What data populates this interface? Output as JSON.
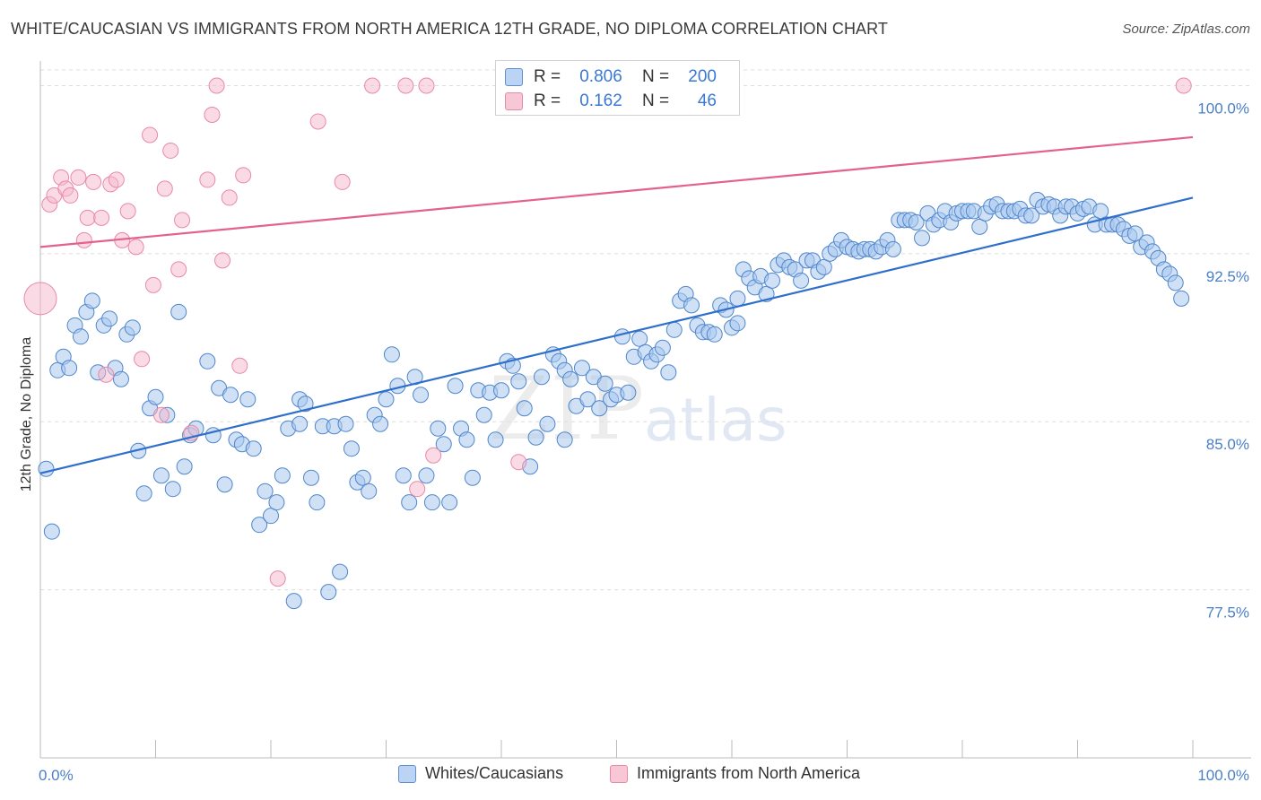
{
  "title": "WHITE/CAUCASIAN VS IMMIGRANTS FROM NORTH AMERICA 12TH GRADE, NO DIPLOMA CORRELATION CHART",
  "source": "Source: ZipAtlas.com",
  "watermark": {
    "zip": "ZIP",
    "atlas": "atlas"
  },
  "colors": {
    "blue_fill": "#a9c8ef",
    "blue_stroke": "#4f86cc",
    "blue_line": "#2f6fcc",
    "pink_fill": "#f6b8cb",
    "pink_stroke": "#e889a6",
    "pink_line": "#e3628c",
    "tick_text": "#4a7fc8",
    "grid": "#dddddd"
  },
  "legend_top": {
    "rows": [
      {
        "r_label": "R =",
        "r_value": "0.806",
        "n_label": "N =",
        "n_value": "200"
      },
      {
        "r_label": "R =",
        "r_value": "0.162",
        "n_label": "N =",
        "n_value": "46"
      }
    ]
  },
  "legend_bottom": [
    {
      "label": "Whites/Caucasians"
    },
    {
      "label": "Immigrants from North America"
    }
  ],
  "chart_data": {
    "type": "scatter",
    "title": "WHITE/CAUCASIAN VS IMMIGRANTS FROM NORTH AMERICA 12TH GRADE, NO DIPLOMA CORRELATION CHART",
    "xlabel": "",
    "ylabel": "12th Grade, No Diploma",
    "xlim": [
      0,
      100
    ],
    "ylim": [
      70.0,
      100.7
    ],
    "x_tick_labels": [
      "0.0%",
      "100.0%"
    ],
    "y_ticks": [
      77.5,
      85.0,
      92.5,
      100.0
    ],
    "y_tick_labels": [
      "77.5%",
      "85.0%",
      "92.5%",
      "100.0%"
    ],
    "grid": true,
    "legend_position": "top-center",
    "series": [
      {
        "name": "Whites/Caucasians",
        "color": "#a9c8ef",
        "trend": {
          "x": [
            0,
            100
          ],
          "y": [
            82.7,
            95.0
          ]
        },
        "points": [
          [
            0.5,
            82.9
          ],
          [
            1,
            80.1
          ],
          [
            1.5,
            87.3
          ],
          [
            2,
            87.9
          ],
          [
            2.5,
            87.4
          ],
          [
            3,
            89.3
          ],
          [
            3.5,
            88.8
          ],
          [
            4,
            89.9
          ],
          [
            4.5,
            90.4
          ],
          [
            5,
            87.2
          ],
          [
            5.5,
            89.3
          ],
          [
            6,
            89.6
          ],
          [
            6.5,
            87.4
          ],
          [
            7,
            86.9
          ],
          [
            7.5,
            88.9
          ],
          [
            8,
            89.2
          ],
          [
            8.5,
            83.7
          ],
          [
            9,
            81.8
          ],
          [
            9.5,
            85.6
          ],
          [
            10,
            86.1
          ],
          [
            10.5,
            82.6
          ],
          [
            11,
            85.3
          ],
          [
            11.5,
            82.0
          ],
          [
            12,
            89.9
          ],
          [
            12.5,
            83.0
          ],
          [
            13,
            84.4
          ],
          [
            13.5,
            84.7
          ],
          [
            14.5,
            87.7
          ],
          [
            15,
            84.4
          ],
          [
            15.5,
            86.5
          ],
          [
            16,
            82.2
          ],
          [
            16.5,
            86.2
          ],
          [
            17,
            84.2
          ],
          [
            17.5,
            84.0
          ],
          [
            18,
            86.0
          ],
          [
            18.5,
            83.8
          ],
          [
            19,
            80.4
          ],
          [
            19.5,
            81.9
          ],
          [
            20,
            80.8
          ],
          [
            20.5,
            81.4
          ],
          [
            21,
            82.6
          ],
          [
            21.5,
            84.7
          ],
          [
            22,
            77.0
          ],
          [
            22.5,
            86.0
          ],
          [
            23,
            85.8
          ],
          [
            23.5,
            82.5
          ],
          [
            24,
            81.4
          ],
          [
            24.5,
            84.8
          ],
          [
            25,
            77.4
          ],
          [
            25.5,
            84.8
          ],
          [
            26,
            78.3
          ],
          [
            26.5,
            84.9
          ],
          [
            27,
            83.8
          ],
          [
            27.5,
            82.3
          ],
          [
            28,
            82.5
          ],
          [
            28.5,
            81.9
          ],
          [
            29,
            85.3
          ],
          [
            29.5,
            84.9
          ],
          [
            30,
            86.0
          ],
          [
            30.5,
            88.0
          ],
          [
            31,
            86.6
          ],
          [
            31.5,
            82.6
          ],
          [
            32,
            81.4
          ],
          [
            32.5,
            87.0
          ],
          [
            33,
            86.2
          ],
          [
            33.5,
            82.6
          ],
          [
            34,
            81.4
          ],
          [
            34.5,
            84.7
          ],
          [
            35,
            84.0
          ],
          [
            35.5,
            81.4
          ],
          [
            36,
            86.6
          ],
          [
            36.5,
            84.7
          ],
          [
            37,
            84.2
          ],
          [
            37.5,
            82.5
          ],
          [
            38,
            86.4
          ],
          [
            38.5,
            85.3
          ],
          [
            39,
            86.3
          ],
          [
            39.5,
            84.2
          ],
          [
            40,
            86.4
          ],
          [
            40.5,
            87.7
          ],
          [
            41,
            87.5
          ],
          [
            41.5,
            86.8
          ],
          [
            42,
            85.6
          ],
          [
            42.5,
            83.0
          ],
          [
            43,
            84.3
          ],
          [
            43.5,
            87.0
          ],
          [
            44,
            84.9
          ],
          [
            44.5,
            88.0
          ],
          [
            45,
            87.7
          ],
          [
            45.5,
            87.3
          ],
          [
            46,
            86.9
          ],
          [
            46.5,
            85.7
          ],
          [
            47,
            87.4
          ],
          [
            47.5,
            86.0
          ],
          [
            48,
            87.0
          ],
          [
            48.5,
            85.6
          ],
          [
            49,
            86.7
          ],
          [
            49.5,
            86.0
          ],
          [
            50,
            86.2
          ],
          [
            50.5,
            88.8
          ],
          [
            51,
            86.3
          ],
          [
            51.5,
            87.9
          ],
          [
            52,
            88.7
          ],
          [
            52.5,
            88.1
          ],
          [
            53,
            87.7
          ],
          [
            53.5,
            88.0
          ],
          [
            54,
            88.3
          ],
          [
            54.5,
            87.2
          ],
          [
            55,
            89.1
          ],
          [
            55.5,
            90.4
          ],
          [
            56,
            90.7
          ],
          [
            56.5,
            90.2
          ],
          [
            57,
            89.3
          ],
          [
            57.5,
            89.0
          ],
          [
            58,
            89.0
          ],
          [
            58.5,
            88.9
          ],
          [
            59,
            90.2
          ],
          [
            59.5,
            90.0
          ],
          [
            60,
            89.2
          ],
          [
            60.5,
            90.5
          ],
          [
            61,
            91.8
          ],
          [
            61.5,
            91.4
          ],
          [
            62,
            91.0
          ],
          [
            62.5,
            91.5
          ],
          [
            63,
            90.7
          ],
          [
            63.5,
            91.3
          ],
          [
            64,
            92.0
          ],
          [
            64.5,
            92.2
          ],
          [
            65,
            91.9
          ],
          [
            65.5,
            91.8
          ],
          [
            66,
            91.3
          ],
          [
            66.5,
            92.2
          ],
          [
            67,
            92.2
          ],
          [
            67.5,
            91.7
          ],
          [
            68,
            91.9
          ],
          [
            68.5,
            92.5
          ],
          [
            69,
            92.7
          ],
          [
            69.5,
            93.1
          ],
          [
            70,
            92.8
          ],
          [
            70.5,
            92.7
          ],
          [
            71,
            92.6
          ],
          [
            71.5,
            92.7
          ],
          [
            72,
            92.7
          ],
          [
            72.5,
            92.6
          ],
          [
            73,
            92.8
          ],
          [
            73.5,
            93.1
          ],
          [
            74,
            92.7
          ],
          [
            74.5,
            94.0
          ],
          [
            75,
            94.0
          ],
          [
            75.5,
            94.0
          ],
          [
            76,
            93.9
          ],
          [
            76.5,
            93.2
          ],
          [
            77,
            94.3
          ],
          [
            77.5,
            93.8
          ],
          [
            78,
            94.0
          ],
          [
            78.5,
            94.4
          ],
          [
            79,
            93.9
          ],
          [
            79.5,
            94.3
          ],
          [
            80,
            94.4
          ],
          [
            80.5,
            94.4
          ],
          [
            81,
            94.4
          ],
          [
            81.5,
            93.7
          ],
          [
            82,
            94.3
          ],
          [
            82.5,
            94.6
          ],
          [
            83,
            94.7
          ],
          [
            83.5,
            94.4
          ],
          [
            84,
            94.4
          ],
          [
            84.5,
            94.4
          ],
          [
            85,
            94.5
          ],
          [
            85.5,
            94.2
          ],
          [
            86,
            94.2
          ],
          [
            86.5,
            94.9
          ],
          [
            87,
            94.6
          ],
          [
            87.5,
            94.7
          ],
          [
            88,
            94.6
          ],
          [
            88.5,
            94.2
          ],
          [
            89,
            94.6
          ],
          [
            89.5,
            94.6
          ],
          [
            90,
            94.3
          ],
          [
            90.5,
            94.5
          ],
          [
            91,
            94.6
          ],
          [
            91.5,
            93.8
          ],
          [
            92,
            94.4
          ],
          [
            92.5,
            93.8
          ],
          [
            93,
            93.8
          ],
          [
            93.5,
            93.8
          ],
          [
            94,
            93.6
          ],
          [
            94.5,
            93.3
          ],
          [
            95,
            93.4
          ],
          [
            95.5,
            92.8
          ],
          [
            96,
            93.0
          ],
          [
            96.5,
            92.6
          ],
          [
            97,
            92.3
          ],
          [
            97.5,
            91.8
          ],
          [
            98,
            91.6
          ],
          [
            98.5,
            91.2
          ],
          [
            99,
            90.5
          ],
          [
            22.5,
            84.9
          ],
          [
            60.5,
            89.4
          ],
          [
            45.5,
            84.2
          ]
        ]
      },
      {
        "name": "Immigrants from North America",
        "color": "#f6b8cb",
        "trend": {
          "x": [
            0,
            100
          ],
          "y": [
            92.8,
            97.7
          ]
        },
        "points": [
          [
            0,
            90.5
          ],
          [
            0.8,
            94.7
          ],
          [
            1.2,
            95.1
          ],
          [
            1.8,
            95.9
          ],
          [
            2.2,
            95.4
          ],
          [
            2.6,
            95.1
          ],
          [
            3.3,
            95.9
          ],
          [
            3.8,
            93.1
          ],
          [
            4.1,
            94.1
          ],
          [
            4.6,
            95.7
          ],
          [
            5.3,
            94.1
          ],
          [
            5.7,
            87.1
          ],
          [
            6.1,
            95.6
          ],
          [
            6.6,
            95.8
          ],
          [
            7.1,
            93.1
          ],
          [
            7.6,
            94.4
          ],
          [
            8.3,
            92.8
          ],
          [
            8.8,
            87.8
          ],
          [
            9.5,
            97.8
          ],
          [
            9.8,
            91.1
          ],
          [
            10.5,
            85.3
          ],
          [
            10.8,
            95.4
          ],
          [
            11.3,
            97.1
          ],
          [
            12.0,
            91.8
          ],
          [
            12.3,
            94.0
          ],
          [
            13.1,
            84.5
          ],
          [
            14.5,
            95.8
          ],
          [
            14.9,
            98.7
          ],
          [
            15.3,
            100.0
          ],
          [
            15.8,
            92.2
          ],
          [
            16.4,
            95.0
          ],
          [
            17.3,
            87.5
          ],
          [
            17.6,
            96.0
          ],
          [
            20.6,
            78.0
          ],
          [
            24.1,
            98.4
          ],
          [
            26.2,
            95.7
          ],
          [
            28.8,
            100.0
          ],
          [
            31.7,
            100.0
          ],
          [
            32.7,
            82.0
          ],
          [
            33.5,
            100.0
          ],
          [
            34.1,
            83.5
          ],
          [
            40.2,
            100.0
          ],
          [
            41.3,
            100.0
          ],
          [
            41.3,
            100.0
          ],
          [
            41.5,
            83.2
          ],
          [
            99.2,
            100.0
          ]
        ]
      }
    ]
  }
}
